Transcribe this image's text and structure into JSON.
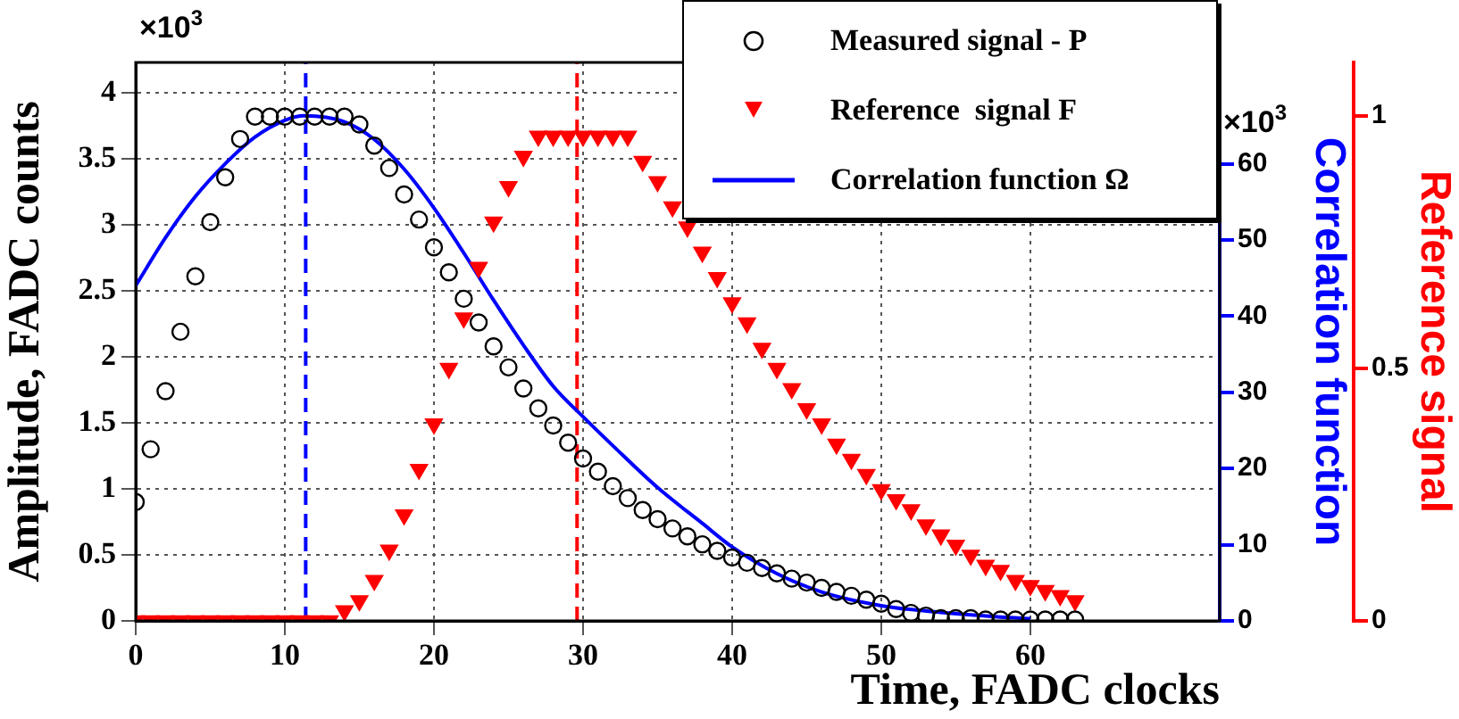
{
  "chart_data": {
    "type": "scatter",
    "xlabel": "Time, FADC clocks",
    "ylabel": "Amplitude, FADC counts",
    "y2label": "Correlation function",
    "y3label": "Reference signal",
    "annotations": [
      "×10$^{3}$",
      "×10$^{3}$"
    ],
    "xlim": [
      0,
      72.7
    ],
    "xticks": [
      0,
      10,
      20,
      30,
      40,
      50,
      60
    ],
    "ylim": [
      0,
      4.23
    ],
    "yticks": [
      0,
      0.5,
      1,
      1.5,
      2,
      2.5,
      3,
      3.5,
      4
    ],
    "y2lim": [
      0,
      73.3
    ],
    "y2ticks": [
      0,
      10,
      20,
      30,
      40,
      50,
      60
    ],
    "y3lim": [
      0,
      1.106
    ],
    "y3ticks": [
      0,
      0.5,
      1
    ],
    "grid": true,
    "legend": "top right",
    "ref_lines": [
      {
        "axis": "x",
        "value": 11.4,
        "color": "#0000ff",
        "line_style": "dashed"
      },
      {
        "axis": "x",
        "value": 29.6,
        "color": "#ff0000",
        "line_style": "dashed"
      }
    ],
    "series": [
      {
        "name": "Measured signal - P",
        "marker": "circle",
        "color": "#000000",
        "x": [
          0,
          1,
          2,
          3,
          4,
          5,
          6,
          7,
          8,
          9,
          10,
          11,
          12,
          13,
          14,
          15,
          16,
          17,
          18,
          19,
          20,
          21,
          22,
          23,
          24,
          25,
          26,
          27,
          28,
          29,
          30,
          31,
          32,
          33,
          34,
          35,
          36,
          37,
          38,
          39,
          40,
          41,
          42,
          43,
          44,
          45,
          46,
          47,
          48,
          49,
          50,
          51,
          52,
          53,
          54,
          55,
          56,
          57,
          58,
          59,
          60,
          61,
          62,
          63
        ],
        "values": [
          0.9,
          1.3,
          1.74,
          2.19,
          2.61,
          3.02,
          3.36,
          3.65,
          3.82,
          3.82,
          3.82,
          3.82,
          3.82,
          3.82,
          3.82,
          3.76,
          3.6,
          3.43,
          3.23,
          3.04,
          2.83,
          2.64,
          2.44,
          2.26,
          2.08,
          1.92,
          1.76,
          1.61,
          1.48,
          1.35,
          1.23,
          1.13,
          1.02,
          0.93,
          0.84,
          0.77,
          0.7,
          0.64,
          0.58,
          0.53,
          0.48,
          0.44,
          0.4,
          0.36,
          0.32,
          0.29,
          0.25,
          0.22,
          0.19,
          0.16,
          0.13,
          0.09,
          0.06,
          0.04,
          0.02,
          0.02,
          0.02,
          0.01,
          0.01,
          0.01,
          0.01,
          0.01,
          0.01,
          0.01
        ]
      },
      {
        "name": "Reference  signal F",
        "marker": "triangle",
        "axis": "y3",
        "color": "#ff0000",
        "x": [
          0,
          1,
          2,
          3,
          4,
          5,
          6,
          7,
          8,
          9,
          10,
          11,
          12,
          13,
          14,
          15,
          16,
          17,
          18,
          19,
          20,
          21,
          22,
          23,
          24,
          25,
          26,
          27,
          28,
          29,
          30,
          31,
          32,
          33,
          34,
          35,
          36,
          37,
          38,
          39,
          40,
          41,
          42,
          43,
          44,
          45,
          46,
          47,
          48,
          49,
          50,
          51,
          52,
          53,
          54,
          55,
          56,
          57,
          58,
          59,
          60,
          61,
          62,
          63
        ],
        "values": [
          0,
          0,
          0,
          0,
          0,
          0,
          0,
          0,
          0,
          0,
          0,
          0,
          0,
          0,
          0.02,
          0.04,
          0.08,
          0.14,
          0.21,
          0.3,
          0.39,
          0.5,
          0.6,
          0.7,
          0.79,
          0.86,
          0.92,
          0.96,
          0.96,
          0.96,
          0.96,
          0.96,
          0.96,
          0.96,
          0.91,
          0.87,
          0.82,
          0.78,
          0.73,
          0.68,
          0.63,
          0.59,
          0.54,
          0.5,
          0.46,
          0.42,
          0.39,
          0.35,
          0.32,
          0.29,
          0.26,
          0.24,
          0.22,
          0.19,
          0.17,
          0.15,
          0.13,
          0.11,
          0.1,
          0.08,
          0.07,
          0.06,
          0.05,
          0.04
        ]
      },
      {
        "name": "Correlation function Ω",
        "type": "line",
        "marker": "none",
        "axis": "y2",
        "color": "#0000ff",
        "x": [
          0,
          2,
          4,
          6,
          8,
          10,
          11.3,
          14,
          16,
          18,
          20,
          22,
          24,
          26,
          28,
          30,
          32,
          35,
          38,
          40,
          43,
          46,
          50,
          54,
          58,
          60
        ],
        "values": [
          44,
          50.3,
          55.7,
          60,
          63.5,
          65.7,
          66.3,
          65.5,
          63.2,
          59.3,
          54.2,
          48.3,
          42.1,
          36.2,
          30.8,
          26.8,
          23,
          17.5,
          12.8,
          9.7,
          6.2,
          3.8,
          2,
          1.1,
          0.5,
          0.3
        ]
      }
    ]
  }
}
